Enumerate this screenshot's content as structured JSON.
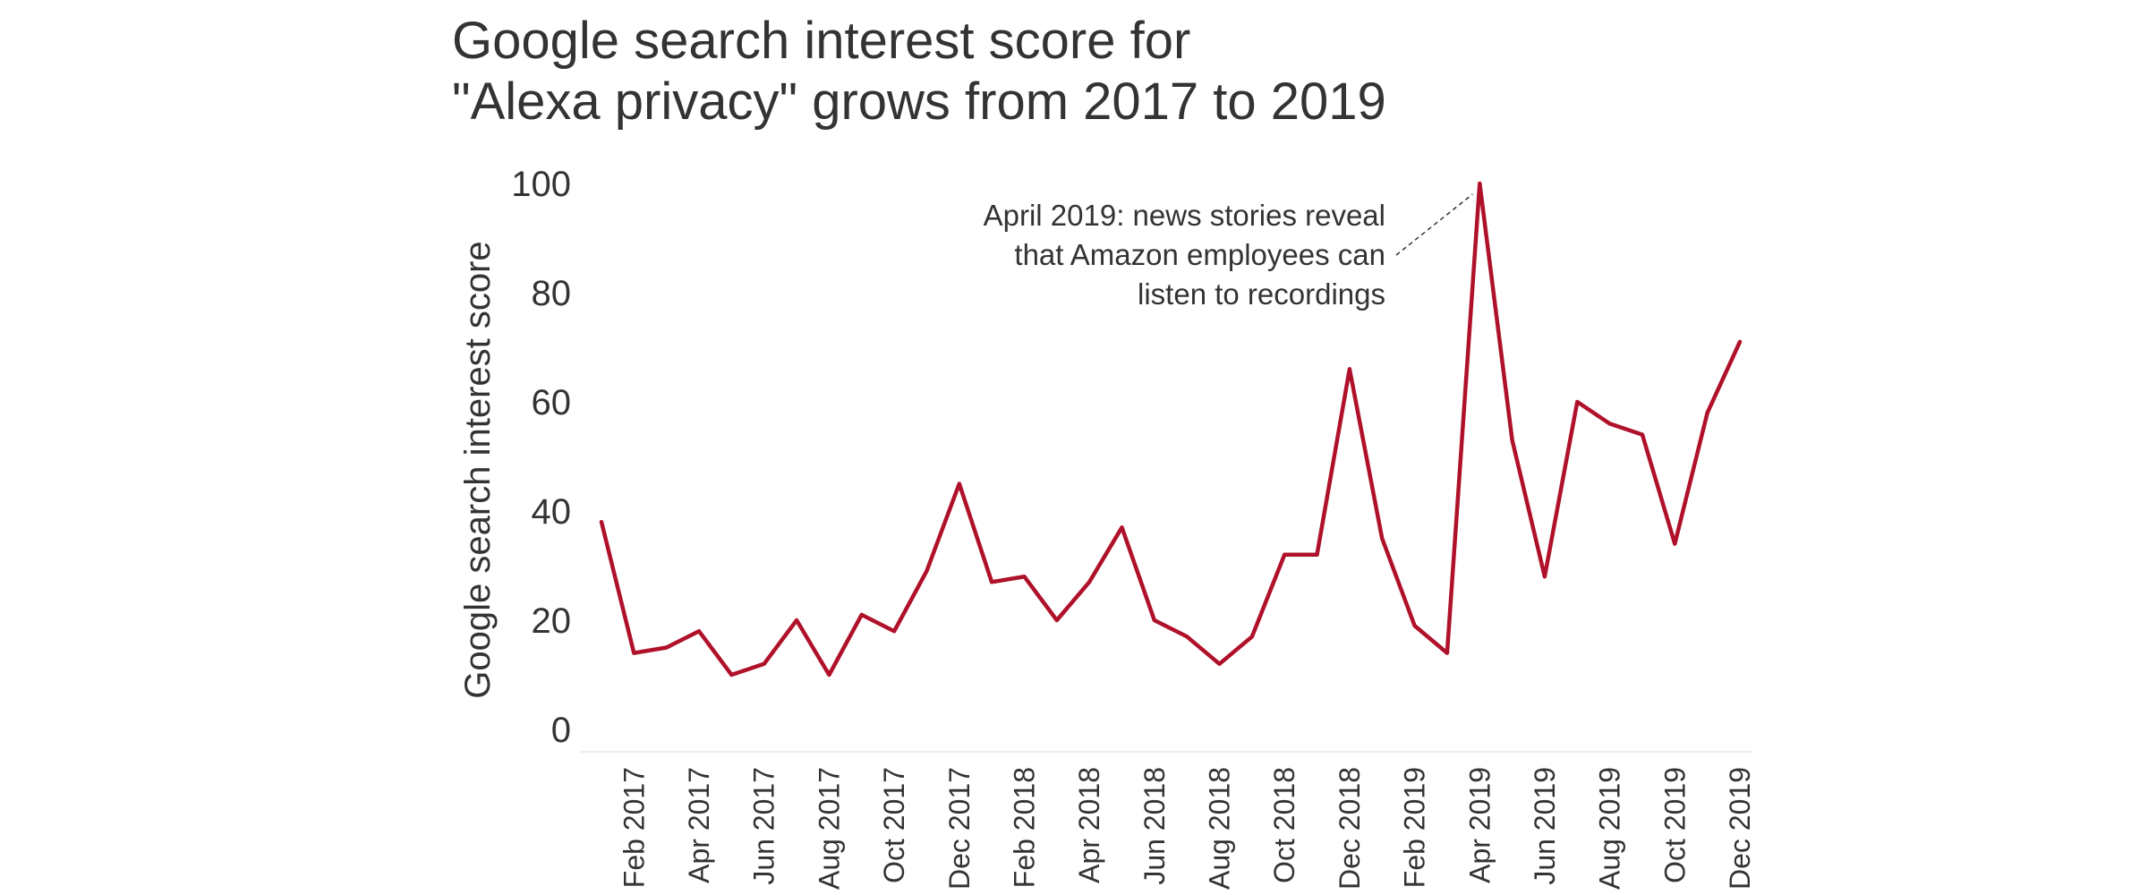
{
  "chart_data": {
    "type": "line",
    "title_lines": [
      "Google search interest score for",
      "\"Alexa privacy\" grows from 2017 to 2019"
    ],
    "xlabel": "",
    "ylabel": "Google search interest score",
    "ylim": [
      0,
      100
    ],
    "yticks": [
      0,
      20,
      40,
      60,
      80,
      100
    ],
    "x": [
      "Jan 2017",
      "Feb 2017",
      "Mar 2017",
      "Apr 2017",
      "May 2017",
      "Jun 2017",
      "Jul 2017",
      "Aug 2017",
      "Sep 2017",
      "Oct 2017",
      "Nov 2017",
      "Dec 2017",
      "Jan 2018",
      "Feb 2018",
      "Mar 2018",
      "Apr 2018",
      "May 2018",
      "Jun 2018",
      "Jul 2018",
      "Aug 2018",
      "Sep 2018",
      "Oct 2018",
      "Nov 2018",
      "Dec 2018",
      "Jan 2019",
      "Feb 2019",
      "Mar 2019",
      "Apr 2019",
      "May 2019",
      "Jun 2019",
      "Jul 2019",
      "Aug 2019",
      "Sep 2019",
      "Oct 2019",
      "Nov 2019",
      "Dec 2019"
    ],
    "xtick_labels": [
      "Feb 2017",
      "Apr 2017",
      "Jun 2017",
      "Aug 2017",
      "Oct 2017",
      "Dec 2017",
      "Feb 2018",
      "Apr 2018",
      "Jun 2018",
      "Aug 2018",
      "Oct 2018",
      "Dec 2018",
      "Feb 2019",
      "Apr 2019",
      "Jun 2019",
      "Aug 2019",
      "Oct 2019",
      "Dec 2019"
    ],
    "series": [
      {
        "values": [
          38,
          14,
          15,
          18,
          10,
          12,
          20,
          10,
          21,
          18,
          29,
          45,
          27,
          28,
          20,
          27,
          37,
          20,
          17,
          12,
          17,
          32,
          32,
          66,
          35,
          19,
          14,
          100,
          53,
          28,
          60,
          56,
          54,
          34,
          58,
          71
        ]
      }
    ],
    "annotation": {
      "x": "Apr 2019",
      "y": 100,
      "lines": [
        "April 2019: news stories reveal",
        "that Amazon employees can",
        "listen to recordings"
      ]
    },
    "grid": false,
    "line_color": "#b0112a"
  }
}
